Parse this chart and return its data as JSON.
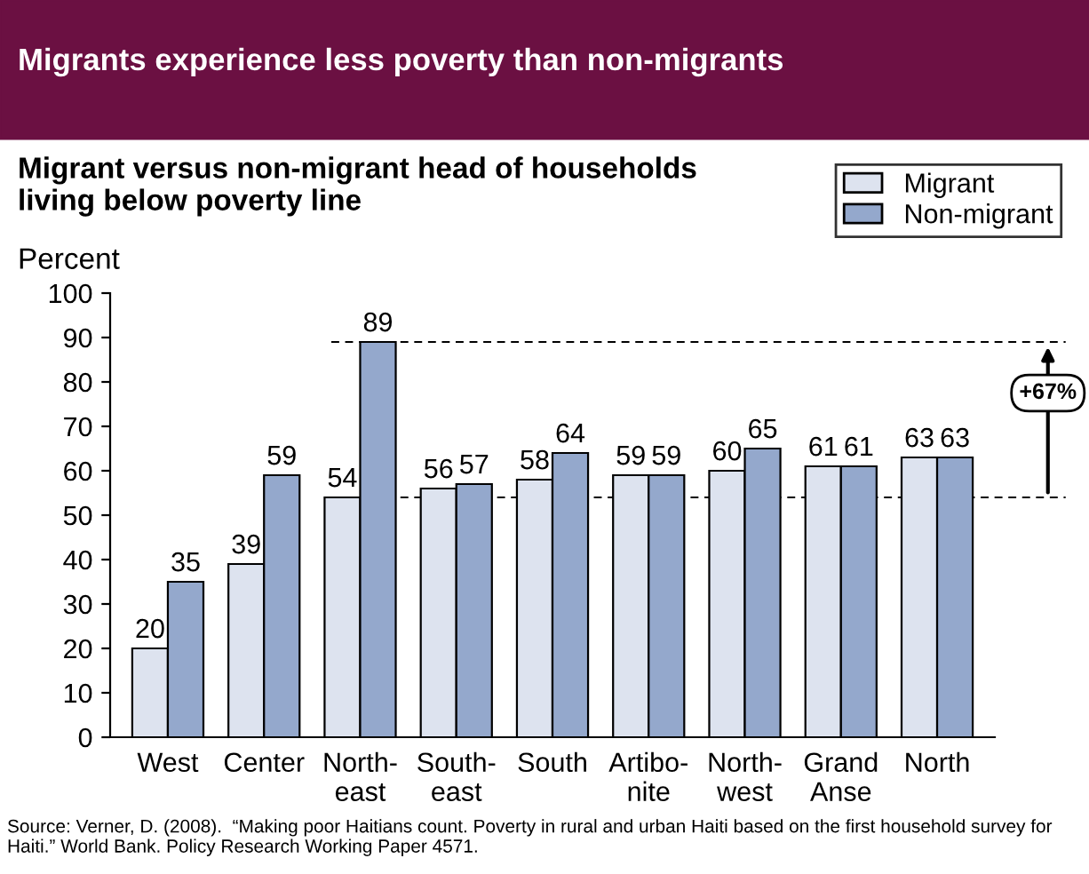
{
  "chart_data": {
    "type": "bar",
    "title": "Migrants experience less poverty than non-migrants",
    "subtitle": "Migrant versus non-migrant head of households\nliving below poverty line",
    "ylabel": "Percent",
    "categories": [
      "West",
      "Center",
      "North-\neast",
      "South-\neast",
      "South",
      "Artibo-\nnite",
      "North-\nwest",
      "Grand\nAnse",
      "North"
    ],
    "series": [
      {
        "name": "Migrant",
        "color": "#dde3ef",
        "values": [
          20,
          39,
          54,
          56,
          58,
          59,
          60,
          61,
          63
        ]
      },
      {
        "name": "Non-migrant",
        "color": "#94a8cc",
        "values": [
          35,
          59,
          89,
          57,
          64,
          59,
          65,
          61,
          63
        ]
      }
    ],
    "ylim": [
      0,
      100
    ],
    "yticks": [
      0,
      10,
      20,
      30,
      40,
      50,
      60,
      70,
      80,
      90,
      100
    ],
    "data_labels": true,
    "legend": "top right",
    "grid": false,
    "ref_lines": [
      {
        "axis": "y",
        "value": 89,
        "line_style": "dashed",
        "color": "#000000"
      },
      {
        "axis": "y",
        "value": 54,
        "line_style": "dashed",
        "color": "#000000"
      }
    ],
    "annotations": [
      "+67%",
      "Source: Verner, D. (2008).  “Making poor Haitians count. Poverty in rural and urban Haiti based on the first household survey for Haiti.” World Bank. Policy Research Working Paper 4571."
    ]
  }
}
